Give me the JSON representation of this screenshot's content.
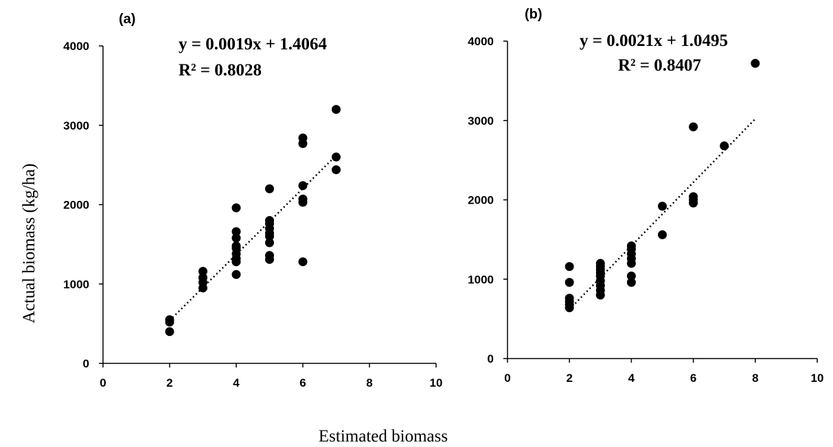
{
  "figure": {
    "xlabel": "Estimated biomass",
    "ylabel": "Actual biomass (kg/ha)"
  },
  "chart_data": [
    {
      "type": "scatter",
      "panel_label": "(a)",
      "equation": "y = 0.0019x + 1.4064",
      "r_squared": "R² = 0.8028",
      "xlim": [
        0,
        10
      ],
      "ylim": [
        0,
        4000
      ],
      "x_ticks": [
        "0",
        "2",
        "4",
        "6",
        "8",
        "10"
      ],
      "y_ticks": [
        "0",
        "1000",
        "2000",
        "3000",
        "4000"
      ],
      "trendline": {
        "x": [
          2,
          7
        ],
        "y": [
          540,
          2620
        ]
      },
      "points": [
        [
          2,
          400
        ],
        [
          2,
          520
        ],
        [
          2,
          550
        ],
        [
          3,
          950
        ],
        [
          3,
          1020
        ],
        [
          3,
          1080
        ],
        [
          3,
          1160
        ],
        [
          4,
          1120
        ],
        [
          4,
          1280
        ],
        [
          4,
          1320
        ],
        [
          4,
          1380
        ],
        [
          4,
          1450
        ],
        [
          4,
          1480
        ],
        [
          4,
          1580
        ],
        [
          4,
          1660
        ],
        [
          4,
          1960
        ],
        [
          5,
          1310
        ],
        [
          5,
          1360
        ],
        [
          5,
          1520
        ],
        [
          5,
          1600
        ],
        [
          5,
          1640
        ],
        [
          5,
          1700
        ],
        [
          5,
          1760
        ],
        [
          5,
          1800
        ],
        [
          5,
          2200
        ],
        [
          6,
          1280
        ],
        [
          6,
          2030
        ],
        [
          6,
          2070
        ],
        [
          6,
          2240
        ],
        [
          6,
          2770
        ],
        [
          6,
          2840
        ],
        [
          7,
          2440
        ],
        [
          7,
          2600
        ],
        [
          7,
          3200
        ]
      ]
    },
    {
      "type": "scatter",
      "panel_label": "(b)",
      "equation": "y = 0.0021x + 1.0495",
      "r_squared": "R² = 0.8407",
      "xlim": [
        0,
        10
      ],
      "ylim": [
        0,
        4000
      ],
      "x_ticks": [
        "0",
        "2",
        "4",
        "6",
        "8",
        "10"
      ],
      "y_ticks": [
        "0",
        "1000",
        "2000",
        "3000",
        "4000"
      ],
      "trendline": {
        "x": [
          2,
          8
        ],
        "y": [
          620,
          3020
        ]
      },
      "points": [
        [
          2,
          640
        ],
        [
          2,
          680
        ],
        [
          2,
          720
        ],
        [
          2,
          760
        ],
        [
          2,
          960
        ],
        [
          2,
          1160
        ],
        [
          3,
          800
        ],
        [
          3,
          860
        ],
        [
          3,
          920
        ],
        [
          3,
          980
        ],
        [
          3,
          1040
        ],
        [
          3,
          1080
        ],
        [
          3,
          1120
        ],
        [
          3,
          1160
        ],
        [
          3,
          1200
        ],
        [
          4,
          960
        ],
        [
          4,
          1040
        ],
        [
          4,
          1200
        ],
        [
          4,
          1260
        ],
        [
          4,
          1320
        ],
        [
          4,
          1380
        ],
        [
          4,
          1420
        ],
        [
          5,
          1560
        ],
        [
          5,
          1920
        ],
        [
          6,
          1960
        ],
        [
          6,
          2000
        ],
        [
          6,
          2040
        ],
        [
          6,
          2920
        ],
        [
          7,
          2680
        ],
        [
          8,
          3720
        ]
      ]
    }
  ]
}
